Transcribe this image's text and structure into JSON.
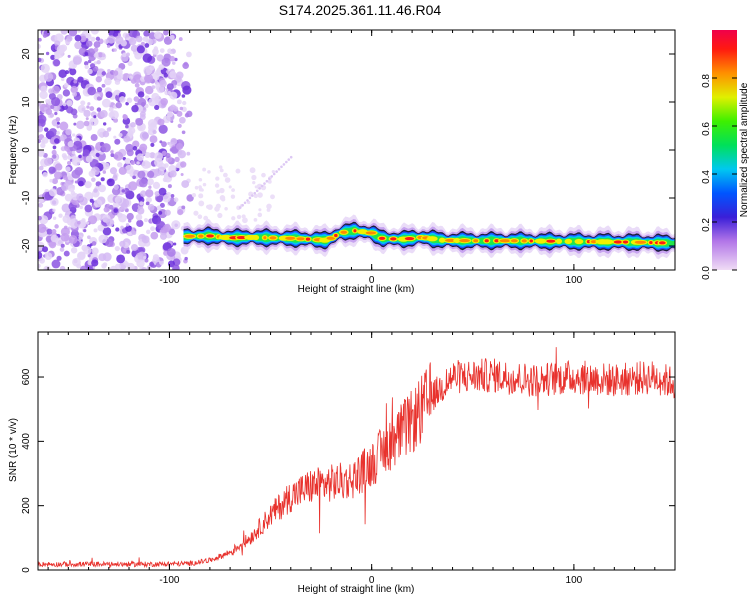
{
  "title": "S174.2025.361.11.46.R04",
  "chart_data": [
    {
      "type": "heatmap",
      "name": "spectrogram",
      "xlabel": "Height of straight line (km)",
      "ylabel": "Frequency (Hz)",
      "xlim": [
        -165,
        150
      ],
      "ylim": [
        -25,
        25
      ],
      "x_ticks": [
        -100,
        0,
        100
      ],
      "y_ticks": [
        -20,
        -10,
        0,
        10,
        20
      ],
      "noise_region_x": [
        -165,
        -88
      ],
      "band_x": [
        -93,
        150
      ],
      "band_center_hz": [
        [
          -93,
          -18
        ],
        [
          -80,
          -17.9
        ],
        [
          -70,
          -18.3
        ],
        [
          -60,
          -18.2
        ],
        [
          -50,
          -18.3
        ],
        [
          -40,
          -18.4
        ],
        [
          -30,
          -18.6
        ],
        [
          -22,
          -18.8
        ],
        [
          -15,
          -17.2
        ],
        [
          -8,
          -16.8
        ],
        [
          0,
          -17.3
        ],
        [
          5,
          -18.4
        ],
        [
          15,
          -18.6
        ],
        [
          25,
          -18.2
        ],
        [
          35,
          -18.8
        ],
        [
          50,
          -18.9
        ],
        [
          70,
          -18.9
        ],
        [
          90,
          -19.0
        ],
        [
          110,
          -19.1
        ],
        [
          130,
          -19.2
        ],
        [
          150,
          -19.4
        ]
      ],
      "colorbar": {
        "label": "Normalized spectral amplitude",
        "range": [
          0,
          1
        ],
        "ticks": [
          "0.0",
          "0.2",
          "0.4",
          "0.6",
          "0.8"
        ],
        "tick_values": [
          0,
          0.2,
          0.4,
          0.6,
          0.8
        ]
      }
    },
    {
      "type": "line",
      "name": "snr",
      "xlabel": "Height of straight line (km)",
      "ylabel": "SNR (10 * v/v)",
      "xlim": [
        -165,
        150
      ],
      "ylim": [
        0,
        740
      ],
      "x_ticks": [
        -100,
        0,
        100
      ],
      "y_ticks": [
        0,
        200,
        400,
        600
      ],
      "color": "#e8322d",
      "trend": [
        [
          -165,
          18
        ],
        [
          -110,
          18
        ],
        [
          -90,
          20
        ],
        [
          -80,
          30
        ],
        [
          -70,
          55
        ],
        [
          -60,
          100
        ],
        [
          -50,
          170
        ],
        [
          -40,
          230
        ],
        [
          -30,
          260
        ],
        [
          -20,
          270
        ],
        [
          -10,
          280
        ],
        [
          0,
          330
        ],
        [
          10,
          400
        ],
        [
          20,
          460
        ],
        [
          30,
          540
        ],
        [
          40,
          600
        ],
        [
          60,
          605
        ],
        [
          80,
          590
        ],
        [
          100,
          600
        ],
        [
          120,
          590
        ],
        [
          140,
          600
        ],
        [
          150,
          580
        ]
      ]
    }
  ]
}
